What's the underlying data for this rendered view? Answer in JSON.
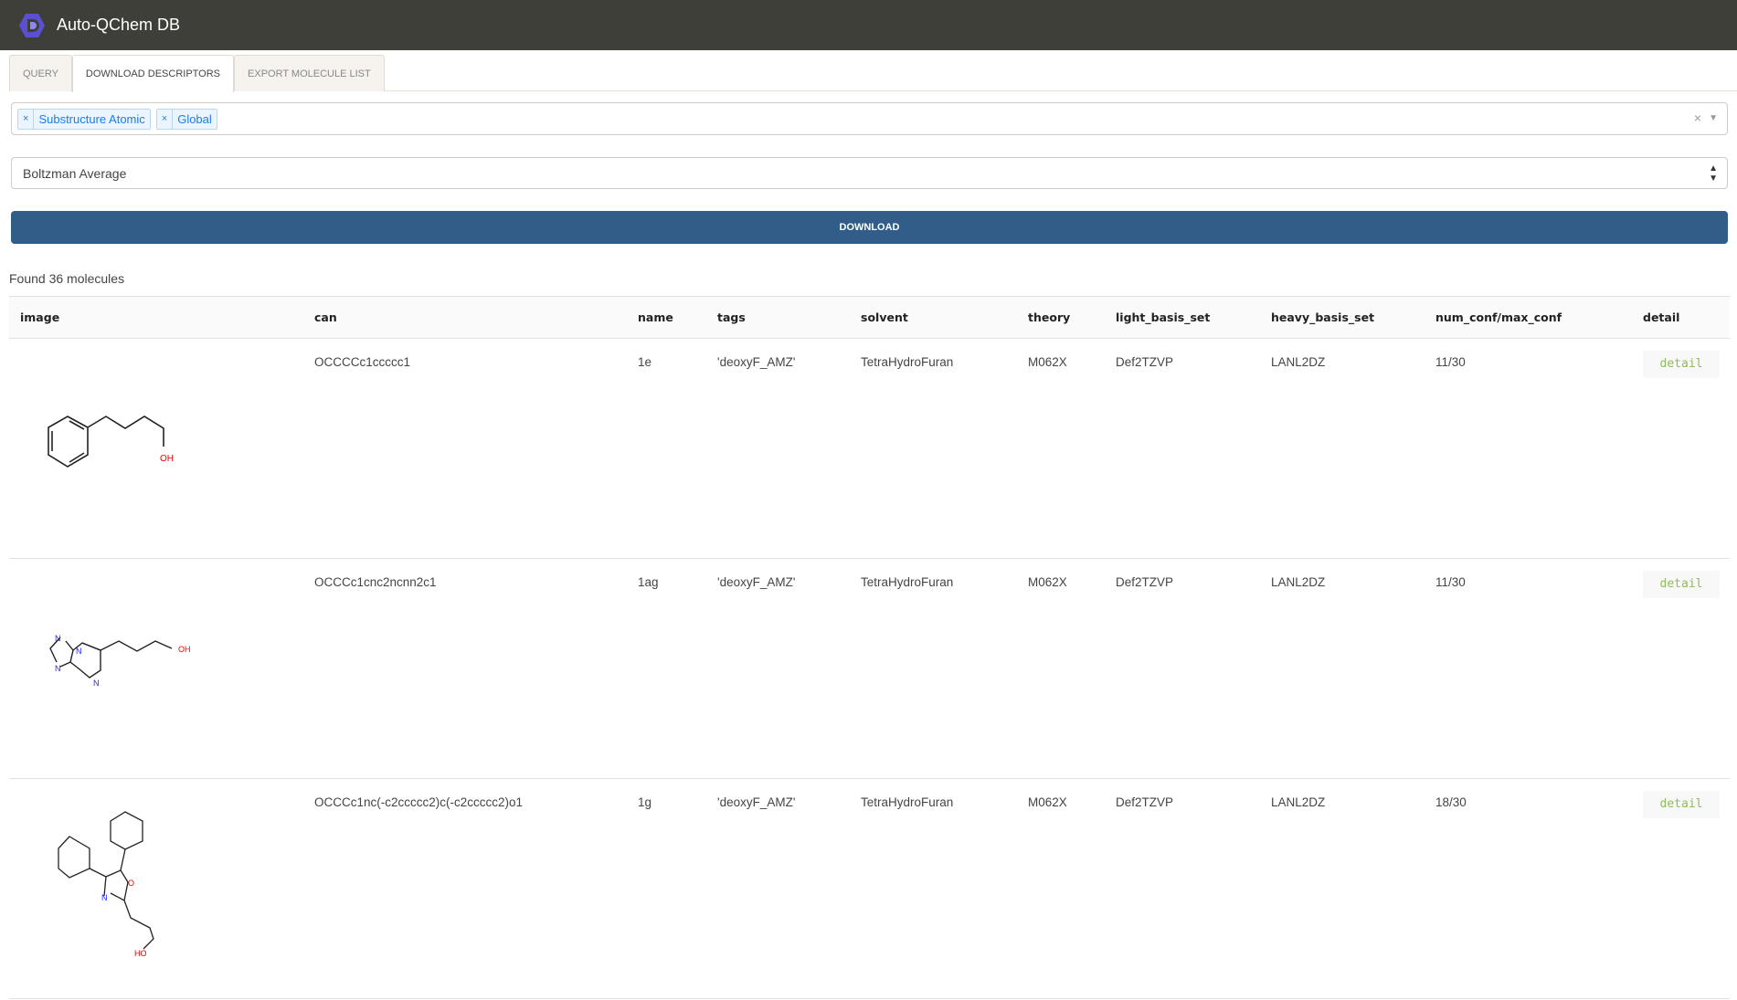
{
  "header": {
    "title": "Auto-QChem DB",
    "logo": "hexagon-logo"
  },
  "tabs": [
    {
      "label": "QUERY",
      "active": false
    },
    {
      "label": "DOWNLOAD DESCRIPTORS",
      "active": true
    },
    {
      "label": "EXPORT MOLECULE LIST",
      "active": false
    }
  ],
  "descriptor_types": {
    "selected": [
      "Substructure Atomic",
      "Global"
    ]
  },
  "conformer_option": {
    "value": "Boltzman Average"
  },
  "download_label": "DOWNLOAD",
  "found_text": "Found 36 molecules",
  "colors": {
    "header": "#3f3f3a",
    "primary": "#325d88",
    "chip": "#1a7ef0",
    "detail": "#8fbc5a"
  },
  "table": {
    "columns": [
      "image",
      "can",
      "name",
      "tags",
      "solvent",
      "theory",
      "light_basis_set",
      "heavy_basis_set",
      "num_conf/max_conf",
      "detail"
    ],
    "rows": [
      {
        "can": "OCCCCc1ccccc1",
        "name": "1e",
        "tags": "'deoxyF_AMZ'",
        "solvent": "TetraHydroFuran",
        "theory": "M062X",
        "light_basis_set": "Def2TZVP",
        "heavy_basis_set": "LANL2DZ",
        "num_conf": "11/30",
        "detail": "detail",
        "atoms": [
          "OH"
        ]
      },
      {
        "can": "OCCCc1cnc2ncnn2c1",
        "name": "1ag",
        "tags": "'deoxyF_AMZ'",
        "solvent": "TetraHydroFuran",
        "theory": "M062X",
        "light_basis_set": "Def2TZVP",
        "heavy_basis_set": "LANL2DZ",
        "num_conf": "11/30",
        "detail": "detail",
        "atoms": [
          "N",
          "N",
          "N",
          "N",
          "OH"
        ]
      },
      {
        "can": "OCCCc1nc(-c2ccccc2)c(-c2ccccc2)o1",
        "name": "1g",
        "tags": "'deoxyF_AMZ'",
        "solvent": "TetraHydroFuran",
        "theory": "M062X",
        "light_basis_set": "Def2TZVP",
        "heavy_basis_set": "LANL2DZ",
        "num_conf": "18/30",
        "detail": "detail",
        "atoms": [
          "O",
          "N",
          "HO"
        ]
      }
    ]
  }
}
